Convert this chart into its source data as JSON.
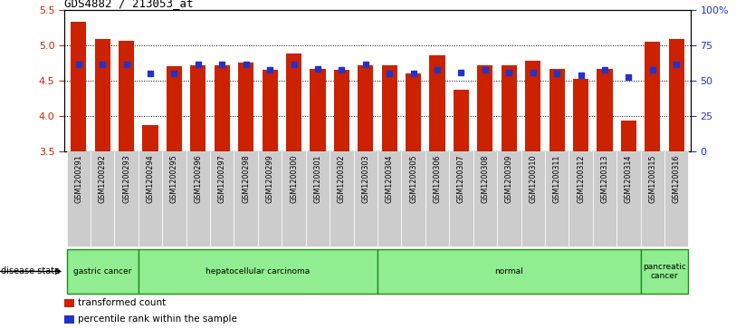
{
  "title": "GDS4882 / 213053_at",
  "samples": [
    "GSM1200291",
    "GSM1200292",
    "GSM1200293",
    "GSM1200294",
    "GSM1200295",
    "GSM1200296",
    "GSM1200297",
    "GSM1200298",
    "GSM1200299",
    "GSM1200300",
    "GSM1200301",
    "GSM1200302",
    "GSM1200303",
    "GSM1200304",
    "GSM1200305",
    "GSM1200306",
    "GSM1200307",
    "GSM1200308",
    "GSM1200309",
    "GSM1200310",
    "GSM1200311",
    "GSM1200312",
    "GSM1200313",
    "GSM1200314",
    "GSM1200315",
    "GSM1200316"
  ],
  "bar_values": [
    5.33,
    5.09,
    5.06,
    3.87,
    4.7,
    4.72,
    4.72,
    4.75,
    4.65,
    4.88,
    4.67,
    4.65,
    4.72,
    4.72,
    4.6,
    4.86,
    4.37,
    4.72,
    4.72,
    4.78,
    4.67,
    4.52,
    4.67,
    3.93,
    5.05,
    5.09
  ],
  "percentile_values": [
    4.73,
    4.73,
    4.73,
    4.6,
    4.6,
    4.73,
    4.73,
    4.73,
    4.65,
    4.73,
    4.67,
    4.65,
    4.73,
    4.6,
    4.6,
    4.65,
    4.62,
    4.65,
    4.62,
    4.62,
    4.6,
    4.57,
    4.65,
    4.55,
    4.65,
    4.73
  ],
  "ylim_left": [
    3.5,
    5.5
  ],
  "ylim_right": [
    0,
    100
  ],
  "yticks_left": [
    3.5,
    4.0,
    4.5,
    5.0,
    5.5
  ],
  "yticks_right": [
    0,
    25,
    50,
    75,
    100
  ],
  "ytick_labels_right": [
    "0",
    "25",
    "50",
    "75",
    "100%"
  ],
  "group_boundaries": [
    {
      "label": "gastric cancer",
      "start": 0,
      "end": 3
    },
    {
      "label": "hepatocellular carcinoma",
      "start": 3,
      "end": 13
    },
    {
      "label": "normal",
      "start": 13,
      "end": 24
    },
    {
      "label": "pancreatic\ncancer",
      "start": 24,
      "end": 26
    }
  ],
  "disease_state_label": "disease state",
  "bar_color": "#CC2200",
  "dot_color": "#2233CC",
  "bar_width": 0.65,
  "background_color": "#FFFFFF",
  "legend_items": [
    {
      "color": "#CC2200",
      "label": "transformed count"
    },
    {
      "color": "#2233CC",
      "label": "percentile rank within the sample"
    }
  ],
  "tick_label_color_left": "#CC2200",
  "tick_label_color_right": "#2233CC",
  "green_color": "#90EE90",
  "green_border": "#228B22"
}
